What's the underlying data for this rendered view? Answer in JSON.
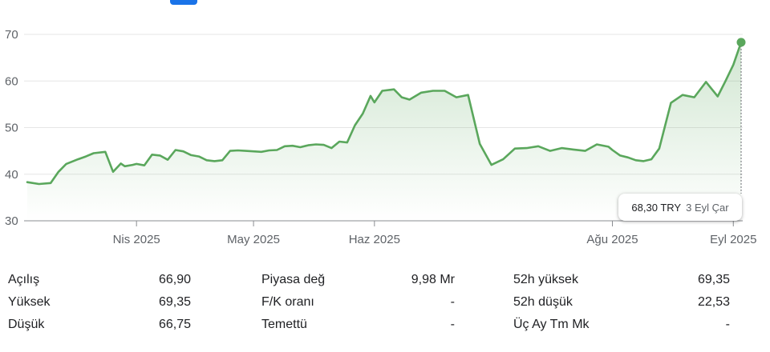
{
  "chart_data": {
    "type": "area",
    "y_ticks": [
      "70",
      "60",
      "50",
      "40",
      "30"
    ],
    "y_tick_values": [
      70,
      60,
      50,
      40,
      30
    ],
    "ylim": [
      30,
      70
    ],
    "x_tick_labels": [
      "Nis 2025",
      "May 2025",
      "Haz 2025",
      "Ağu 2025",
      "Eyl 2025"
    ],
    "x_tick_dates": [
      "2025-04-01",
      "2025-05-01",
      "2025-06-01",
      "2025-08-01",
      "2025-09-01"
    ],
    "x_range": [
      "2025-03-04",
      "2025-09-03"
    ],
    "grid": true,
    "line_color": "#5aa75c",
    "series": [
      {
        "x": [
          "2025-03-04",
          "2025-03-07",
          "2025-03-10",
          "2025-03-12",
          "2025-03-14",
          "2025-03-17",
          "2025-03-19",
          "2025-03-21",
          "2025-03-24",
          "2025-03-26",
          "2025-03-28",
          "2025-03-29",
          "2025-03-31",
          "2025-04-01",
          "2025-04-03",
          "2025-04-05",
          "2025-04-07",
          "2025-04-09",
          "2025-04-11",
          "2025-04-13",
          "2025-04-15",
          "2025-04-17",
          "2025-04-19",
          "2025-04-21",
          "2025-04-23",
          "2025-04-25",
          "2025-04-27",
          "2025-04-29",
          "2025-05-01",
          "2025-05-03",
          "2025-05-05",
          "2025-05-07",
          "2025-05-09",
          "2025-05-11",
          "2025-05-13",
          "2025-05-15",
          "2025-05-17",
          "2025-05-19",
          "2025-05-21",
          "2025-05-23",
          "2025-05-25",
          "2025-05-27",
          "2025-05-29",
          "2025-05-31",
          "2025-06-01",
          "2025-06-03",
          "2025-06-06",
          "2025-06-08",
          "2025-06-10",
          "2025-06-13",
          "2025-06-16",
          "2025-06-19",
          "2025-06-22",
          "2025-06-25",
          "2025-06-28",
          "2025-07-01",
          "2025-07-04",
          "2025-07-07",
          "2025-07-10",
          "2025-07-13",
          "2025-07-16",
          "2025-07-19",
          "2025-07-22",
          "2025-07-25",
          "2025-07-28",
          "2025-07-31",
          "2025-08-01",
          "2025-08-03",
          "2025-08-05",
          "2025-08-07",
          "2025-08-09",
          "2025-08-11",
          "2025-08-13",
          "2025-08-16",
          "2025-08-19",
          "2025-08-22",
          "2025-08-25",
          "2025-08-28",
          "2025-08-30",
          "2025-09-01",
          "2025-09-03"
        ],
        "values": [
          38.3,
          37.9,
          38.1,
          40.5,
          42.2,
          43.2,
          43.8,
          44.5,
          44.8,
          40.5,
          42.3,
          41.7,
          42.0,
          42.2,
          41.9,
          44.2,
          44.0,
          43.1,
          45.2,
          44.9,
          44.1,
          43.8,
          43.0,
          42.8,
          43.0,
          45.0,
          45.1,
          45.0,
          44.9,
          44.8,
          45.1,
          45.2,
          46.0,
          46.1,
          45.8,
          46.2,
          46.4,
          46.3,
          45.6,
          47.0,
          46.8,
          50.5,
          53.0,
          56.8,
          55.4,
          57.9,
          58.2,
          56.5,
          56.0,
          57.5,
          57.9,
          57.9,
          56.5,
          57.0,
          46.5,
          42.0,
          43.2,
          45.5,
          45.6,
          46.0,
          45.0,
          45.6,
          45.3,
          45.0,
          46.4,
          45.9,
          45.2,
          44.0,
          43.6,
          43.0,
          42.8,
          43.2,
          45.5,
          55.3,
          57.0,
          56.5,
          59.8,
          56.7,
          60.0,
          63.5,
          68.3
        ]
      }
    ]
  },
  "tooltip": {
    "price": "68,30 TRY",
    "date": "3 Eyl Çar"
  },
  "stats": [
    {
      "label": "Açılış",
      "value": "66,90"
    },
    {
      "label": "Piyasa değ",
      "value": "9,98 Mr"
    },
    {
      "label": "52h yüksek",
      "value": "69,35"
    },
    {
      "label": "Yüksek",
      "value": "69,35"
    },
    {
      "label": "F/K oranı",
      "value": "-"
    },
    {
      "label": "52h düşük",
      "value": "22,53"
    },
    {
      "label": "Düşük",
      "value": "66,75"
    },
    {
      "label": "Temettü",
      "value": "-"
    },
    {
      "label": "Üç Ay Tm Mk",
      "value": "-"
    }
  ]
}
